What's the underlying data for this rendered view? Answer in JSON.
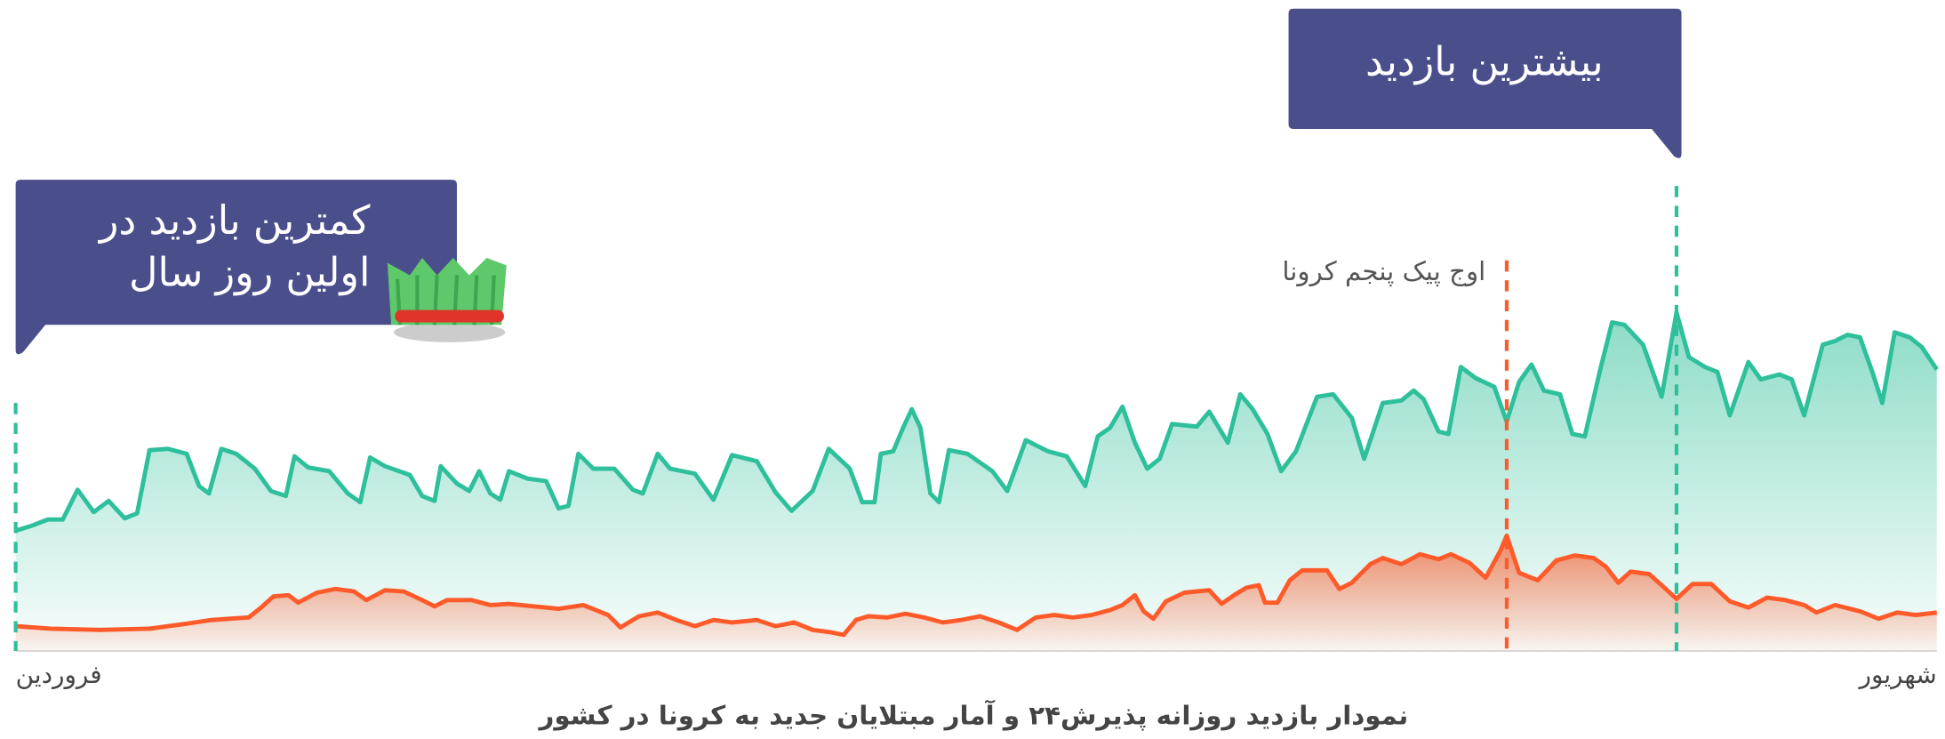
{
  "chart_data": {
    "type": "area",
    "title": "نمودار بازدید روزانه پذیرش۲۴ و آمار مبتلایان جدید به کرونا در کشور",
    "xlim": [
      0,
      1550
    ],
    "xticks": [
      {
        "value": 0,
        "label": "فروردین"
      },
      {
        "value": 1550,
        "label": "شهریور"
      }
    ],
    "ylim": [
      0,
      300
    ],
    "series": [
      {
        "color": "#2ebf9b",
        "x": [
          0,
          13,
          26,
          38,
          50,
          63,
          75,
          88,
          98,
          108,
          123,
          138,
          148,
          156,
          166,
          178,
          193,
          206,
          218,
          225,
          236,
          253,
          268,
          278,
          286,
          298,
          318,
          328,
          338,
          343,
          356,
          366,
          374,
          383,
          391,
          398,
          413,
          428,
          438,
          446,
          454,
          466,
          483,
          498,
          506,
          518,
          528,
          548,
          563,
          578,
          598,
          613,
          626,
          643,
          656,
          673,
          683,
          693,
          698,
          708,
          716,
          723,
          730,
          738,
          745,
          753,
          768,
          788,
          800,
          815,
          833,
          848,
          863,
          873,
          883,
          893,
          903,
          913,
          923,
          933,
          953,
          963,
          978,
          988,
          998,
          1010,
          1021,
          1033,
          1050,
          1063,
          1078,
          1088,
          1103,
          1118,
          1128,
          1136,
          1148,
          1156,
          1166,
          1178,
          1193,
          1203,
          1213,
          1223,
          1233,
          1246,
          1256,
          1266,
          1278,
          1288,
          1298,
          1313,
          1328,
          1340,
          1350,
          1363,
          1373,
          1383,
          1398,
          1408,
          1423,
          1433,
          1443,
          1458,
          1468,
          1478,
          1488,
          1498,
          1506,
          1516,
          1528,
          1538,
          1550
        ],
        "values": [
          97,
          101,
          106,
          106,
          130,
          112,
          121,
          107,
          111,
          162,
          163,
          159,
          133,
          127,
          163,
          159,
          147,
          129,
          125,
          157,
          148,
          145,
          127,
          120,
          156,
          149,
          142,
          125,
          121,
          149,
          135,
          129,
          145,
          127,
          122,
          145,
          139,
          137,
          115,
          117,
          159,
          147,
          147,
          130,
          127,
          159,
          147,
          143,
          122,
          158,
          153,
          128,
          113,
          129,
          163,
          147,
          120,
          120,
          159,
          161,
          180,
          195,
          180,
          127,
          120,
          162,
          159,
          145,
          129,
          170,
          161,
          157,
          133,
          173,
          180,
          197,
          168,
          147,
          155,
          183,
          181,
          193,
          168,
          207,
          195,
          175,
          145,
          161,
          205,
          207,
          188,
          155,
          200,
          202,
          210,
          203,
          177,
          175,
          229,
          220,
          213,
          185,
          217,
          231,
          210,
          207,
          175,
          173,
          225,
          265,
          263,
          247,
          205,
          273,
          237,
          229,
          225,
          190,
          233,
          219,
          223,
          219,
          190,
          247,
          250,
          255,
          253,
          225,
          200,
          257,
          253,
          245,
          227
        ]
      },
      {
        "color": "#ff5a2a",
        "x": [
          0,
          28,
          68,
          108,
          138,
          158,
          188,
          198,
          208,
          220,
          228,
          243,
          258,
          273,
          283,
          298,
          313,
          328,
          338,
          348,
          368,
          383,
          398,
          418,
          438,
          458,
          478,
          488,
          503,
          518,
          533,
          548,
          563,
          578,
          598,
          613,
          628,
          643,
          658,
          668,
          678,
          688,
          703,
          718,
          733,
          748,
          763,
          778,
          793,
          808,
          823,
          838,
          853,
          868,
          883,
          893,
          903,
          910,
          918,
          928,
          943,
          963,
          973,
          983,
          993,
          1003,
          1008,
          1018,
          1028,
          1038,
          1058,
          1068,
          1078,
          1093,
          1103,
          1118,
          1133,
          1148,
          1158,
          1173,
          1186,
          1198,
          1203,
          1213,
          1228,
          1243,
          1258,
          1273,
          1283,
          1293,
          1303,
          1318,
          1328,
          1340,
          1353,
          1368,
          1383,
          1398,
          1413,
          1428,
          1443,
          1453,
          1468,
          1488,
          1503,
          1518,
          1533,
          1550
        ],
        "values": [
          20,
          18,
          17,
          18,
          22,
          25,
          27,
          35,
          44,
          45,
          39,
          47,
          50,
          48,
          41,
          49,
          48,
          41,
          36,
          41,
          41,
          37,
          38,
          36,
          34,
          37,
          29,
          19,
          28,
          31,
          25,
          20,
          25,
          23,
          25,
          20,
          23,
          17,
          15,
          13,
          25,
          28,
          27,
          30,
          27,
          23,
          25,
          28,
          23,
          17,
          27,
          29,
          27,
          29,
          33,
          37,
          45,
          32,
          26,
          40,
          47,
          49,
          38,
          45,
          51,
          53,
          39,
          39,
          57,
          65,
          65,
          50,
          55,
          70,
          75,
          70,
          78,
          74,
          78,
          71,
          59,
          81,
          93,
          63,
          57,
          73,
          77,
          75,
          68,
          55,
          64,
          62,
          53,
          42,
          54,
          54,
          40,
          35,
          43,
          41,
          37,
          31,
          37,
          32,
          26,
          31,
          29,
          31
        ]
      }
    ],
    "annotations": [
      {
        "lines": [
          "کمترین بازدید در",
          "اولین روز سال"
        ],
        "x": 0,
        "color": "#2ebf9b"
      },
      {
        "lines": [
          "بیشترین بازدید"
        ],
        "x": 1340,
        "color": "#2ebf9b"
      },
      {
        "lines": [
          "اوج پیک پنجم کرونا"
        ],
        "x": 1203,
        "color": "#ff5a2a"
      }
    ]
  }
}
